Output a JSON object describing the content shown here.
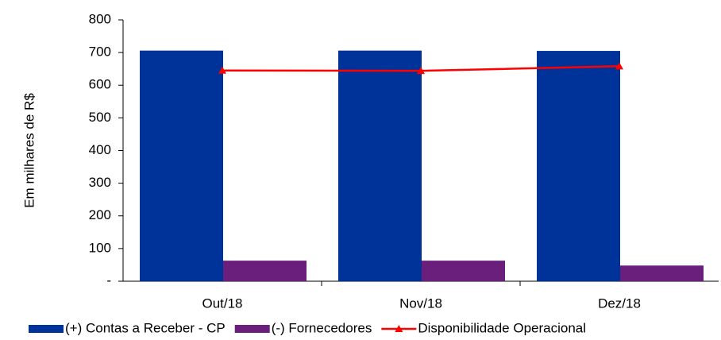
{
  "chart_data": {
    "type": "bar",
    "y_label": "Em milhares de R$",
    "categories": [
      "Out/18",
      "Nov/18",
      "Dez/18"
    ],
    "series": [
      {
        "name": "(+) Contas a Receber - CP",
        "type": "bar",
        "color": "#003399",
        "values": [
          706,
          706,
          705
        ]
      },
      {
        "name": "(-) Fornecedores",
        "type": "bar",
        "color": "#6b1f7c",
        "values": [
          63,
          63,
          48
        ]
      },
      {
        "name": "Disponibilidade Operacional",
        "type": "line",
        "color": "#ff0000",
        "values": [
          645,
          644,
          658
        ]
      }
    ],
    "ylim": [
      0,
      800
    ],
    "yticks": [
      {
        "value": 0,
        "label": "-"
      },
      100,
      200,
      300,
      400,
      500,
      600,
      700,
      800
    ]
  }
}
